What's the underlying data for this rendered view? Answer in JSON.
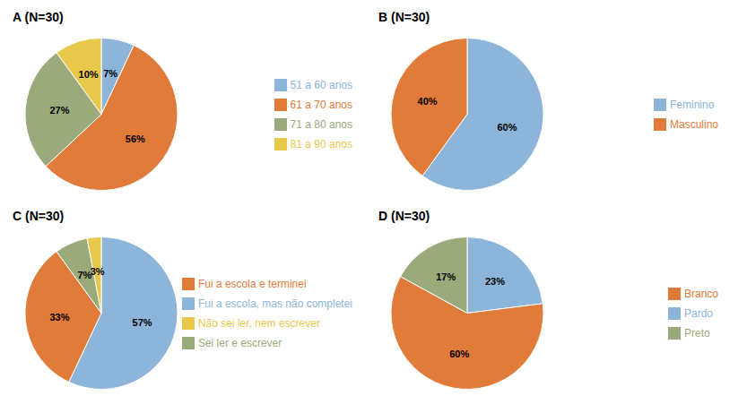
{
  "chart_data": [
    {
      "type": "pie",
      "title": "A (N=30)",
      "categories": [
        "51 a 60 anos",
        "61 a 70 anos",
        "71 a 80 anos",
        "81 a 90 anos"
      ],
      "values": [
        7,
        56,
        27,
        10
      ],
      "value_labels": [
        "7%",
        "56%",
        "27%",
        "10%"
      ],
      "colors": [
        "#8db4d9",
        "#e07b39",
        "#9aaa7a",
        "#e8c84a"
      ],
      "data_labels": true,
      "legend": "right"
    },
    {
      "type": "pie",
      "title": "B (N=30)",
      "categories": [
        "Feminino",
        "Masculino"
      ],
      "values": [
        60,
        40
      ],
      "value_labels": [
        "60%",
        "40%"
      ],
      "colors": [
        "#8db4d9",
        "#e07b39"
      ],
      "data_labels": true,
      "legend": "right"
    },
    {
      "type": "pie",
      "title": "C (N=30)",
      "categories": [
        "Fui a escola, mas não completei",
        "Fui a escola e terminei",
        "Sei ler e escrever",
        "Não sei ler, nem escrever"
      ],
      "values": [
        57,
        33,
        7,
        3
      ],
      "value_labels": [
        "57%",
        "33%",
        "7%",
        "3%"
      ],
      "colors": [
        "#8db4d9",
        "#e07b39",
        "#9aaa7a",
        "#e8c84a"
      ],
      "data_labels": true,
      "legend": "right"
    },
    {
      "type": "pie",
      "title": "D (N=30)",
      "categories": [
        "Pardo",
        "Branco",
        "Preto"
      ],
      "values": [
        23,
        60,
        17
      ],
      "value_labels": [
        "23%",
        "60%",
        "17%"
      ],
      "colors": [
        "#8db4d9",
        "#e07b39",
        "#9aaa7a"
      ],
      "data_labels": true,
      "legend": "right"
    }
  ]
}
